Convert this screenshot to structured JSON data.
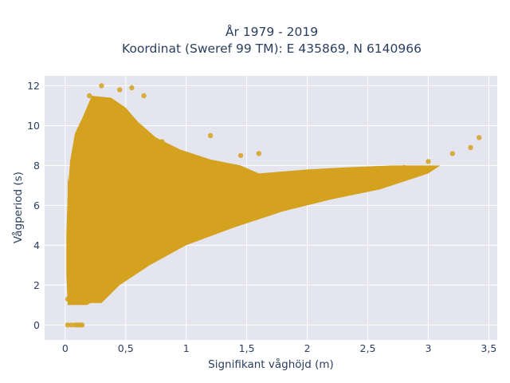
{
  "chart_data": {
    "type": "scatter",
    "title_line1": "År 1979 - 2019",
    "title_line2": "Koordinat (Sweref 99 TM): E 435869, N 6140966",
    "xlabel": "Signifikant våghöjd (m)",
    "ylabel": "Vågperiod (s)",
    "xlim": [
      -0.17,
      3.57
    ],
    "ylim": [
      -0.75,
      12.5
    ],
    "x_ticks": [
      0,
      0.5,
      1,
      1.5,
      2,
      2.5,
      3,
      3.5
    ],
    "x_tick_labels": [
      "0",
      "0,5",
      "1",
      "1,5",
      "2",
      "2,5",
      "3",
      "3,5"
    ],
    "y_ticks": [
      0,
      2,
      4,
      6,
      8,
      10,
      12
    ],
    "y_tick_labels": [
      "0",
      "2",
      "4",
      "6",
      "8",
      "10",
      "12"
    ],
    "grid": true,
    "marker_color": "#d4a21e",
    "plot_background": "#e5e5ef",
    "series": [
      {
        "points": [
          [
            0.02,
            0.0
          ],
          [
            0.05,
            0.0
          ],
          [
            0.08,
            0.0
          ],
          [
            0.1,
            0.0
          ],
          [
            0.12,
            0.0
          ],
          [
            0.14,
            0.0
          ],
          [
            0.02,
            1.3
          ],
          [
            0.06,
            1.2
          ],
          [
            0.1,
            1.4
          ],
          [
            0.15,
            1.3
          ],
          [
            0.05,
            2.0
          ],
          [
            0.1,
            2.4
          ],
          [
            0.15,
            2.8
          ],
          [
            0.2,
            3.0
          ],
          [
            0.25,
            3.2
          ],
          [
            0.3,
            2.6
          ],
          [
            0.35,
            2.3
          ],
          [
            0.4,
            2.5
          ],
          [
            0.1,
            4.0
          ],
          [
            0.2,
            4.5
          ],
          [
            0.3,
            4.6
          ],
          [
            0.4,
            5.0
          ],
          [
            0.5,
            4.0
          ],
          [
            0.6,
            3.8
          ],
          [
            0.1,
            6.0
          ],
          [
            0.2,
            6.5
          ],
          [
            0.3,
            6.2
          ],
          [
            0.5,
            6.0
          ],
          [
            0.8,
            5.5
          ],
          [
            1.0,
            5.0
          ],
          [
            0.1,
            8.0
          ],
          [
            0.2,
            9.0
          ],
          [
            0.3,
            8.5
          ],
          [
            0.5,
            8.0
          ],
          [
            0.7,
            8.2
          ],
          [
            1.0,
            7.5
          ],
          [
            0.15,
            10.0
          ],
          [
            0.25,
            10.5
          ],
          [
            0.35,
            11.0
          ],
          [
            0.45,
            10.2
          ],
          [
            0.6,
            9.5
          ],
          [
            0.8,
            9.2
          ],
          [
            0.2,
            11.5
          ],
          [
            0.3,
            12.0
          ],
          [
            0.45,
            11.8
          ],
          [
            0.55,
            11.9
          ],
          [
            0.65,
            11.5
          ],
          [
            1.2,
            9.5
          ],
          [
            1.45,
            8.5
          ],
          [
            1.6,
            8.6
          ],
          [
            1.2,
            6.5
          ],
          [
            1.5,
            6.8
          ],
          [
            1.8,
            6.9
          ],
          [
            2.0,
            7.0
          ],
          [
            2.2,
            7.3
          ],
          [
            2.4,
            7.5
          ],
          [
            2.6,
            7.7
          ],
          [
            2.8,
            7.9
          ],
          [
            3.0,
            8.2
          ],
          [
            3.2,
            8.6
          ],
          [
            3.35,
            8.9
          ],
          [
            3.42,
            9.4
          ]
        ]
      }
    ]
  }
}
